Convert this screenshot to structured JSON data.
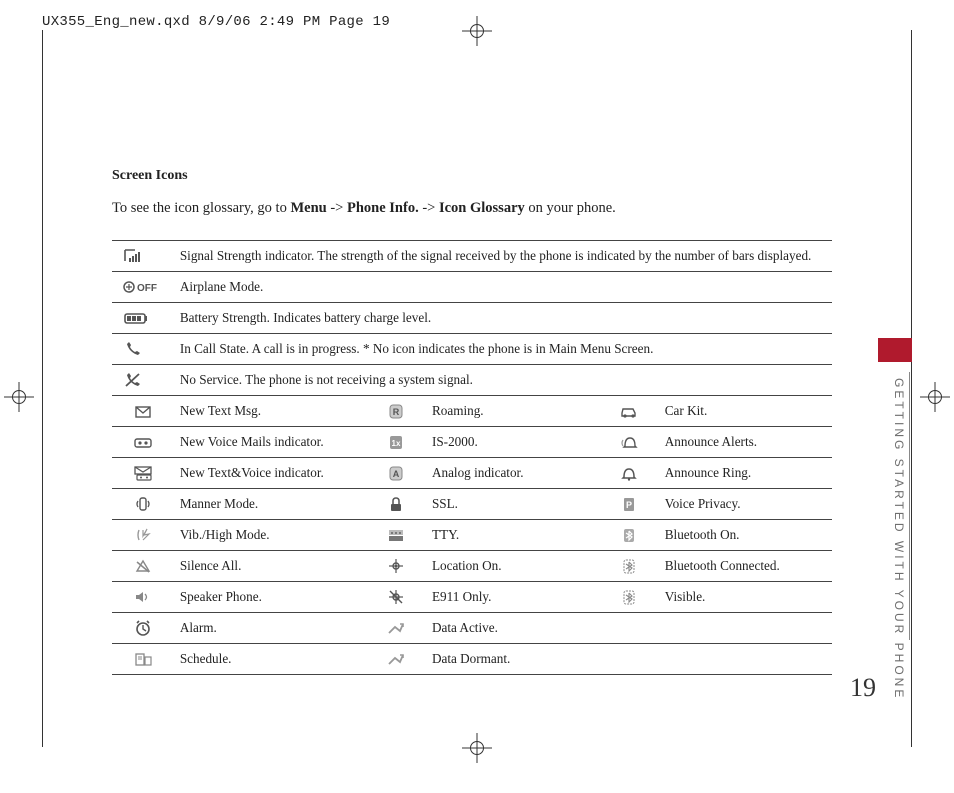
{
  "header": "UX355_Eng_new.qxd  8/9/06  2:49 PM  Page 19",
  "section_title": "Screen Icons",
  "intro_parts": [
    "To see the icon glossary, go to ",
    "Menu",
    " -> ",
    "Phone Info.",
    " -> ",
    "Icon Glossary",
    " on your phone."
  ],
  "full_rows": [
    {
      "icon": {
        "type": "svg",
        "body": "<g fill='none' stroke='#555' stroke-width='1.6'><path d='M2 3 L2 14 M2 3 L12 3'/></g><g fill='#555'><rect x='6' y='11' width='2' height='4'/><rect x='9' y='9' width='2' height='6'/><rect x='12' y='7' width='2' height='8'/><rect x='15' y='5' width='2' height='10'/></g>"
      },
      "text": "Signal Strength indicator. The strength of the signal received by the phone is indicated by the number of bars displayed."
    },
    {
      "icon": {
        "type": "svg",
        "body": "<g fill='#555'><circle cx='6' cy='9' r='5' fill='none' stroke='#555' stroke-width='1.5'/><path d='M6 6 L6 12 M3 9 L9 9' stroke='#555' stroke-width='1.2'/><text x='14' y='13' font-family='Arial' font-size='10' font-weight='bold' fill='#555'>OFF</text></g>"
      },
      "text": "Airplane Mode."
    },
    {
      "icon": {
        "type": "svg",
        "body": "<rect x='2' y='5' width='20' height='9' rx='2' fill='none' stroke='#555' stroke-width='1.6'/><rect x='22' y='7' width='2' height='5' fill='#555'/><rect x='4' y='7' width='4' height='5' fill='#555'/><rect x='9' y='7' width='4' height='5' fill='#555'/><rect x='14' y='7' width='4' height='5' fill='#555'/>"
      },
      "text": "Battery Strength. Indicates battery charge level."
    },
    {
      "icon": {
        "type": "svg",
        "body": "<path d='M4 4 C4 4 5 8 8 11 C11 14 15 15 15 15 L17 13 L14 11 L12 12 C10 11 8 9 7 7 L8 5 L6 2 Z' fill='#555'/>"
      },
      "text": "In Call State. A call is in progress. * No icon indicates the phone is in Main Menu Screen."
    },
    {
      "icon": {
        "type": "svg",
        "body": "<path d='M4 4 C4 4 5 8 8 11 C11 14 15 15 15 15 L17 13 L14 11 L12 12 C10 11 8 9 7 7 L8 5 L6 2 Z' fill='#555'/><line x1='3' y1='15' x2='16' y2='3' stroke='#555' stroke-width='1.8'/>"
      },
      "text": "No Service. The phone is not receiving a system signal."
    }
  ],
  "grid_rows": [
    {
      "c": [
        {
          "i": "env",
          "t": "New Text Msg."
        },
        {
          "i": "R",
          "t": "Roaming."
        },
        {
          "i": "car",
          "t": "Car Kit."
        }
      ]
    },
    {
      "c": [
        {
          "i": "tape",
          "t": "New Voice Mails indicator."
        },
        {
          "i": "1x",
          "t": "IS-2000."
        },
        {
          "i": "bellR",
          "t": "Announce Alerts."
        }
      ]
    },
    {
      "c": [
        {
          "i": "both",
          "t": "New Text&Voice indicator."
        },
        {
          "i": "A",
          "t": "Analog indicator."
        },
        {
          "i": "bell",
          "t": "Announce Ring."
        }
      ]
    },
    {
      "c": [
        {
          "i": "vib",
          "t": "Manner Mode."
        },
        {
          "i": "lock",
          "t": "SSL."
        },
        {
          "i": "P",
          "t": "Voice Privacy."
        }
      ]
    },
    {
      "c": [
        {
          "i": "vibH",
          "t": "Vib./High Mode."
        },
        {
          "i": "tty",
          "t": "TTY."
        },
        {
          "i": "bt",
          "t": "Bluetooth On."
        }
      ]
    },
    {
      "c": [
        {
          "i": "silence",
          "t": "Silence All."
        },
        {
          "i": "loc",
          "t": "Location On."
        },
        {
          "i": "btc",
          "t": "Bluetooth Connected."
        }
      ]
    },
    {
      "c": [
        {
          "i": "spk",
          "t": "Speaker Phone."
        },
        {
          "i": "e911",
          "t": "E911 Only."
        },
        {
          "i": "btc",
          "t": "Visible."
        }
      ]
    },
    {
      "c": [
        {
          "i": "alarm",
          "t": "Alarm."
        },
        {
          "i": "data",
          "t": "Data Active."
        },
        {
          "i": "",
          "t": ""
        }
      ]
    },
    {
      "c": [
        {
          "i": "sched",
          "t": "Schedule."
        },
        {
          "i": "data",
          "t": "Data Dormant."
        },
        {
          "i": "",
          "t": ""
        }
      ]
    }
  ],
  "icon_svgs": {
    "env": "<rect x='3' y='5' width='14' height='10' fill='none' stroke='#555' stroke-width='1.4'/><path d='M3 5 L10 11 L17 5' fill='none' stroke='#555' stroke-width='1.4'/>",
    "tape": "<rect x='2' y='6' width='16' height='8' rx='2' fill='none' stroke='#555' stroke-width='1.4'/><circle cx='7' cy='10' r='1.6' fill='#555'/><circle cx='13' cy='10' r='1.6' fill='#555'/>",
    "both": "<rect x='2' y='3' width='16' height='7' fill='none' stroke='#555' stroke-width='1.3'/><path d='M2 3 L10 8 L18 3' stroke='#555' fill='none' stroke-width='1.2'/><rect x='4' y='11' width='14' height='5' rx='1' fill='none' stroke='#555' stroke-width='1.2'/><circle cx='8' cy='13.5' r='1' fill='#555'/><circle cx='14' cy='13.5' r='1' fill='#555'/>",
    "vib": "<rect x='7' y='3' width='6' height='12' rx='2' fill='none' stroke='#555' stroke-width='1.4'/><path d='M5 6 Q3 9 5 12 M15 6 Q17 9 15 12' stroke='#555' fill='none' stroke-width='1.3'/>",
    "vibH": "<path d='M6 4 Q4 9 6 14' stroke='#999' fill='none' stroke-width='1.4'/><path d='M10 4 L10 10 L14 3 L11 9 L16 8 L10 14' stroke='#999' fill='none' stroke-width='1.2'/>",
    "silence": "<path d='M10 4 L4 14 L16 14 Z' fill='none' stroke='#888' stroke-width='1.4'/><line x1='4' y1='5' x2='16' y2='15' stroke='#888' stroke-width='1.5'/>",
    "spk": "<path d='M3 7 L6 7 L10 4 L10 14 L6 11 L3 11 Z' fill='#888'/><path d='M12 6 Q15 9 12 12' stroke='#888' fill='none' stroke-width='1.3'/>",
    "alarm": "<circle cx='10' cy='10' r='6' fill='none' stroke='#555' stroke-width='1.6'/><path d='M10 6 L10 10 L13 12' stroke='#555' fill='none' stroke-width='1.4'/><path d='M4 4 L6 2 M16 4 L14 2' stroke='#555' stroke-width='1.6'/>",
    "sched": "<rect x='3' y='4' width='8' height='11' fill='none' stroke='#888' stroke-width='1.3'/><line x1='5' y1='7' x2='9' y2='7' stroke='#888'/><line x1='5' y1='9' x2='9' y2='9' stroke='#888'/><rect x='12' y='7' width='6' height='8' fill='none' stroke='#888' stroke-width='1.2'/>",
    "R": "<rect x='4' y='3' width='12' height='13' rx='3' fill='#ccc' stroke='#888'/><text x='10' y='13' text-anchor='middle' font-family='Arial' font-weight='bold' font-size='9' fill='#555'>R</text>",
    "1x": "<rect x='4' y='3' width='12' height='13' rx='2' fill='#999'/><text x='10' y='13' text-anchor='middle' font-family='Arial' font-weight='bold' font-size='8' fill='#fff'>1x</text>",
    "A": "<rect x='4' y='3' width='12' height='13' rx='3' fill='#ccc' stroke='#888'/><text x='10' y='13' text-anchor='middle' font-family='Arial' font-weight='bold' font-size='9' fill='#555'>A</text>",
    "lock": "<rect x='5' y='9' width='10' height='7' rx='1' fill='#555'/><path d='M7 9 L7 6 Q7 3 10 3 Q13 3 13 6 L13 9' fill='none' stroke='#555' stroke-width='1.5'/>",
    "tty": "<rect x='3' y='10' width='14' height='5' fill='#777'/><rect x='3' y='4' width='14' height='5' fill='#bbb'/><circle cx='6' cy='7' r='1' fill='#666'/><circle cx='10' cy='7' r='1' fill='#666'/><circle cx='14' cy='7' r='1' fill='#666'/>",
    "loc": "<circle cx='10' cy='9' r='3' fill='none' stroke='#555' stroke-width='1.4'/><line x1='10' y1='2' x2='10' y2='16' stroke='#555' stroke-width='1.2'/><line x1='3' y1='9' x2='17' y2='9' stroke='#555' stroke-width='1.2'/><circle cx='10' cy='9' r='1.3' fill='#555'/>",
    "e911": "<circle cx='10' cy='9' r='3' fill='none' stroke='#555' stroke-width='1.4'/><line x1='10' y1='2' x2='10' y2='16' stroke='#555' stroke-width='1.2'/><line x1='3' y1='9' x2='17' y2='9' stroke='#555' stroke-width='1.2'/><line x1='4' y1='3' x2='16' y2='15' stroke='#555' stroke-width='1.4'/>",
    "data": "<path d='M3 14 L9 8 L14 12 L17 5' stroke='#999' fill='none' stroke-width='1.8'/><path d='M14 5 L17 5 L17 8' stroke='#999' fill='none' stroke-width='1.6'/>",
    "car": "<path d='M3 11 L4 7 L14 7 L16 11 L16 14 L3 14 Z' fill='none' stroke='#555' stroke-width='1.4'/><circle cx='6' cy='14' r='1.6' fill='#555'/><circle cx='14' cy='14' r='1.6' fill='#555'/>",
    "bellR": "<path d='M6 13 Q6 5 11 5 Q16 5 16 13 L17 14 L5 14 Z' fill='none' stroke='#555' stroke-width='1.4'/><path d='M4 7 Q2 10 4 13' stroke='#999' fill='none' stroke-width='1.2'/>",
    "bell": "<path d='M5 13 Q5 5 10 5 Q15 5 15 13 L16 14 L4 14 Z' fill='none' stroke='#555' stroke-width='1.5'/><circle cx='10' cy='15.5' r='1.2' fill='#555'/>",
    "P": "<rect x='5' y='3' width='10' height='13' rx='1' fill='#999'/><text x='10' y='13' text-anchor='middle' font-family='Arial' font-weight='bold' font-size='9' fill='#fff'>P</text>",
    "bt": "<rect x='5' y='3' width='10' height='13' rx='2' fill='#aaa'/><path d='M10 5 L10 14 L13 11 L7 7 M10 5 L13 8 L7 12' stroke='#fff' fill='none' stroke-width='1.2'/>",
    "btc": "<rect x='5' y='3' width='10' height='13' rx='2' fill='none' stroke='#888' stroke-width='1' stroke-dasharray='2 1'/><path d='M10 5 L10 14 L13 11 L7 7 M10 5 L13 8 L7 12' stroke='#888' fill='none' stroke-width='1.1'/>",
    "": ""
  },
  "sidebar_text": "GETTING STARTED WITH YOUR PHONE",
  "page_number": "19",
  "colors": {
    "red_tab": "#b01a2d",
    "rule": "#444",
    "text": "#222",
    "muted": "#6e6e6e"
  }
}
